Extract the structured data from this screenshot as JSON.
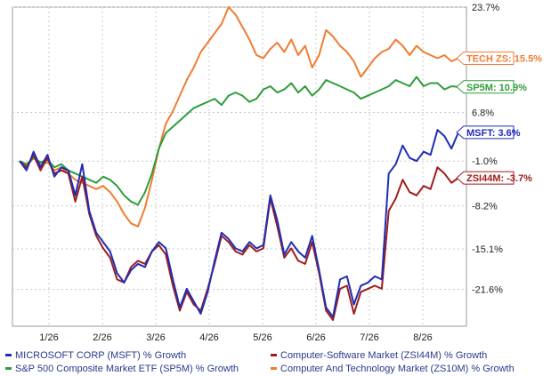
{
  "chart_data": {
    "type": "line",
    "x_ticks": [
      "1/26",
      "2/26",
      "3/26",
      "4/26",
      "5/26",
      "6/26",
      "7/26",
      "8/26"
    ],
    "y_ticks": [
      23.7,
      6.8,
      -1.0,
      -8.2,
      -15.1,
      -21.6
    ],
    "y_tick_labels": [
      "23.7%",
      "6.8%",
      "-1.0%",
      "-8.2%",
      "-15.1%",
      "-21.6%"
    ],
    "ylim": [
      -27.5,
      23.7
    ],
    "grid": true,
    "series": [
      {
        "name": "MICROSOFT CORP (MSFT) % Growth",
        "flag": "MSFT: 3.6%",
        "color": "#1f2db5",
        "values": [
          -1.0,
          -2.5,
          0.5,
          -2.0,
          0.0,
          -3.5,
          -2.0,
          -2.5,
          -6.5,
          -1.5,
          -9.0,
          -12.5,
          -14.0,
          -15.5,
          -19.0,
          -20.5,
          -18.5,
          -17.5,
          -18.0,
          -15.5,
          -14.0,
          -15.0,
          -20.0,
          -24.5,
          -21.5,
          -23.5,
          -25.5,
          -22.0,
          -17.0,
          -12.5,
          -13.5,
          -15.0,
          -15.5,
          -14.0,
          -15.0,
          -14.5,
          -6.5,
          -10.5,
          -16.0,
          -14.0,
          -15.5,
          -16.5,
          -13.0,
          -18.5,
          -24.5,
          -26.0,
          -20.0,
          -19.5,
          -24.0,
          -21.0,
          -20.5,
          -19.5,
          -20.0,
          -3.0,
          -1.5,
          1.5,
          -0.5,
          -1.0,
          0.5,
          0.0,
          4.0,
          3.0,
          1.0,
          3.6
        ]
      },
      {
        "name": "Computer-Software Market (ZSI44M) % Growth",
        "flag": "ZSI44M: -3.7%",
        "color": "#a01c1c",
        "values": [
          -1.0,
          -2.0,
          0.0,
          -2.5,
          -0.5,
          -3.0,
          -2.5,
          -3.0,
          -7.5,
          -3.5,
          -9.5,
          -13.0,
          -15.0,
          -16.5,
          -20.0,
          -20.5,
          -18.0,
          -17.0,
          -17.5,
          -15.5,
          -14.5,
          -16.0,
          -21.0,
          -25.0,
          -22.0,
          -24.0,
          -25.0,
          -21.5,
          -17.5,
          -13.0,
          -14.0,
          -15.5,
          -16.0,
          -14.5,
          -15.5,
          -15.0,
          -7.0,
          -11.5,
          -16.5,
          -15.0,
          -17.0,
          -17.5,
          -14.0,
          -19.0,
          -25.0,
          -26.5,
          -21.5,
          -21.0,
          -25.5,
          -22.0,
          -21.5,
          -21.0,
          -21.5,
          -9.0,
          -7.0,
          -4.0,
          -6.0,
          -6.5,
          -5.0,
          -5.5,
          -2.0,
          -3.0,
          -4.5,
          -3.7
        ]
      },
      {
        "name": "S&P 500 Composite Market ETF (SP5M) % Growth",
        "flag": "SP5M: 10.9%",
        "color": "#2e9e3a",
        "values": [
          -1.0,
          -1.5,
          -0.5,
          -1.2,
          -0.8,
          -2.0,
          -1.5,
          -2.5,
          -3.0,
          -3.5,
          -4.0,
          -4.5,
          -3.5,
          -4.0,
          -5.0,
          -6.5,
          -7.5,
          -8.0,
          -6.0,
          -3.0,
          1.0,
          3.5,
          4.5,
          5.5,
          6.5,
          7.5,
          8.0,
          8.5,
          9.0,
          8.0,
          9.5,
          10.0,
          9.5,
          8.5,
          9.0,
          10.5,
          11.0,
          10.0,
          10.5,
          11.5,
          10.0,
          11.0,
          9.5,
          10.5,
          12.0,
          11.5,
          11.0,
          10.5,
          10.0,
          9.0,
          9.5,
          10.0,
          10.5,
          11.0,
          12.0,
          11.5,
          11.0,
          12.5,
          11.0,
          11.5,
          11.5,
          10.5,
          11.0,
          10.9
        ]
      },
      {
        "name": "Computer And Technology Market (ZS10M) % Growth",
        "flag": "TECH ZS: 15.5%",
        "color": "#f07c32",
        "values": [
          -1.0,
          -1.8,
          -0.5,
          -1.5,
          -1.2,
          -2.5,
          -2.0,
          -3.0,
          -4.0,
          -4.5,
          -5.0,
          -5.5,
          -5.0,
          -6.0,
          -7.5,
          -9.5,
          -11.0,
          -11.5,
          -8.5,
          -4.0,
          1.0,
          5.0,
          7.0,
          9.5,
          12.0,
          14.0,
          16.5,
          18.0,
          19.5,
          21.0,
          23.7,
          22.5,
          20.5,
          18.5,
          16.0,
          15.5,
          17.0,
          18.0,
          16.5,
          18.5,
          16.0,
          17.5,
          14.0,
          16.0,
          20.0,
          19.0,
          17.5,
          16.5,
          15.0,
          12.5,
          14.0,
          15.5,
          16.5,
          17.0,
          18.5,
          17.5,
          16.0,
          17.5,
          16.5,
          16.0,
          15.5,
          16.0,
          15.0,
          15.5
        ]
      }
    ]
  }
}
